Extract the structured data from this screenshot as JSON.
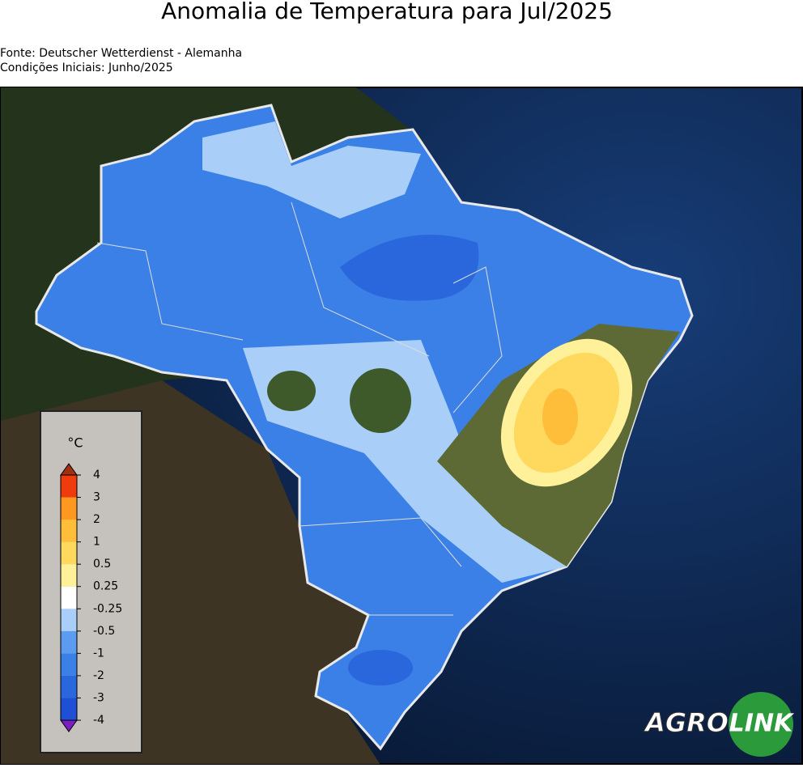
{
  "header": {
    "title": "Anomalia de Temperatura para Jul/2025",
    "source": "Fonte: Deutscher Wetterdienst - Alemanha",
    "initial_conditions": "Condições Iniciais: Junho/2025"
  },
  "legend": {
    "unit": "°C",
    "ticks": [
      -4,
      -3,
      -2,
      -1,
      -0.5,
      -0.25,
      0.25,
      0.5,
      1,
      2,
      3,
      4
    ],
    "colors": [
      "#1f4fd4",
      "#2a66dc",
      "#3a80e6",
      "#5b9cf0",
      "#a9cef8",
      "#ffffff",
      "#fff09a",
      "#ffd85e",
      "#ffbe3a",
      "#ff9820",
      "#ee3c0e"
    ],
    "under_color": "#7a1fc0",
    "over_color": "#a03010"
  },
  "logo": {
    "left": "AGRO",
    "right": "LINK"
  }
}
